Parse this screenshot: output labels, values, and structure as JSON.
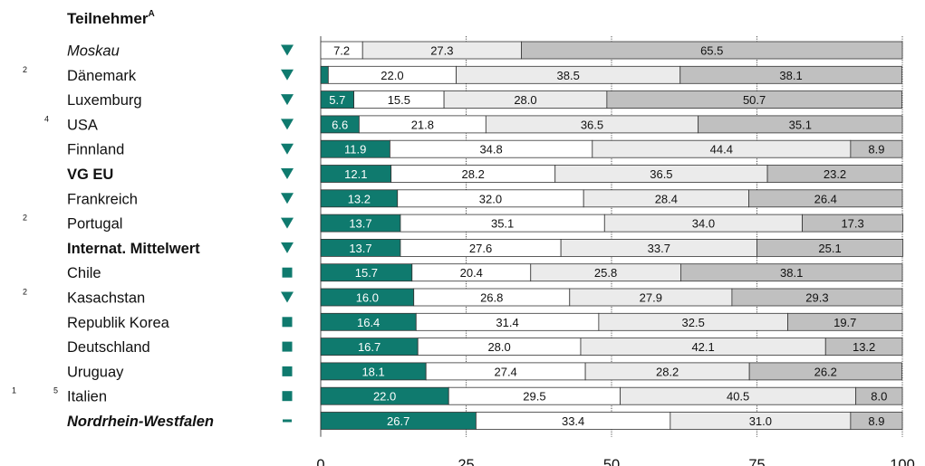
{
  "header": {
    "title": "Teilnehmer",
    "title_sup": "A"
  },
  "colors": {
    "seg1": "#0f7a6e",
    "seg2": "#ffffff",
    "seg3": "#ebebeb",
    "seg4": "#c0c0c0",
    "marker": "#0f7a6e",
    "stroke": "#333333"
  },
  "chart_data": {
    "type": "bar",
    "orientation": "horizontal",
    "stacked": true,
    "xlim": [
      0,
      100
    ],
    "xticks": [
      "0",
      "25",
      "50",
      "75",
      "100"
    ],
    "rows": [
      {
        "name": "Moskau",
        "style": "italic",
        "fn1": "",
        "fn2": "",
        "marker": "down",
        "values": [
          7.2,
          27.3,
          65.5
        ],
        "labels": [
          "7.2",
          "27.3",
          "65.5"
        ],
        "start": 1
      },
      {
        "name": "Dänemark",
        "style": "normal",
        "fn1": "2",
        "fn2": "",
        "marker": "down",
        "values": [
          1.3,
          22.0,
          38.5,
          38.1
        ],
        "labels": [
          "",
          "22.0",
          "38.5",
          "38.1"
        ],
        "start": 0
      },
      {
        "name": "Luxemburg",
        "style": "normal",
        "fn1": "",
        "fn2": "",
        "marker": "down",
        "values": [
          5.7,
          15.5,
          28.0,
          50.7
        ],
        "labels": [
          "5.7",
          "15.5",
          "28.0",
          "50.7"
        ],
        "start": 0
      },
      {
        "name": "USA",
        "style": "normal",
        "fn1": "",
        "fn2": "4",
        "marker": "down",
        "values": [
          6.6,
          21.8,
          36.5,
          35.1
        ],
        "labels": [
          "6.6",
          "21.8",
          "36.5",
          "35.1"
        ],
        "start": 0
      },
      {
        "name": "Finnland",
        "style": "normal",
        "fn1": "",
        "fn2": "",
        "marker": "down",
        "values": [
          11.9,
          34.8,
          44.4,
          8.9
        ],
        "labels": [
          "11.9",
          "34.8",
          "44.4",
          "8.9"
        ],
        "start": 0
      },
      {
        "name": "VG EU",
        "style": "bold",
        "fn1": "",
        "fn2": "",
        "marker": "down",
        "values": [
          12.1,
          28.2,
          36.5,
          23.2
        ],
        "labels": [
          "12.1",
          "28.2",
          "36.5",
          "23.2"
        ],
        "start": 0
      },
      {
        "name": "Frankreich",
        "style": "normal",
        "fn1": "",
        "fn2": "",
        "marker": "down",
        "values": [
          13.2,
          32.0,
          28.4,
          26.4
        ],
        "labels": [
          "13.2",
          "32.0",
          "28.4",
          "26.4"
        ],
        "start": 0
      },
      {
        "name": "Portugal",
        "style": "normal",
        "fn1": "2",
        "fn2": "",
        "marker": "down",
        "values": [
          13.7,
          35.1,
          34.0,
          17.3
        ],
        "labels": [
          "13.7",
          "35.1",
          "34.0",
          "17.3"
        ],
        "start": 0
      },
      {
        "name": "Internat. Mittelwert",
        "style": "bold",
        "fn1": "",
        "fn2": "",
        "marker": "down",
        "values": [
          13.7,
          27.6,
          33.7,
          25.1
        ],
        "labels": [
          "13.7",
          "27.6",
          "33.7",
          "25.1"
        ],
        "start": 0
      },
      {
        "name": "Chile",
        "style": "normal",
        "fn1": "",
        "fn2": "",
        "marker": "square",
        "values": [
          15.7,
          20.4,
          25.8,
          38.1
        ],
        "labels": [
          "15.7",
          "20.4",
          "25.8",
          "38.1"
        ],
        "start": 0
      },
      {
        "name": "Kasachstan",
        "style": "normal",
        "fn1": "2",
        "fn2": "",
        "marker": "down",
        "values": [
          16.0,
          26.8,
          27.9,
          29.3
        ],
        "labels": [
          "16.0",
          "26.8",
          "27.9",
          "29.3"
        ],
        "start": 0
      },
      {
        "name": "Republik Korea",
        "style": "normal",
        "fn1": "",
        "fn2": "",
        "marker": "square",
        "values": [
          16.4,
          31.4,
          32.5,
          19.7
        ],
        "labels": [
          "16.4",
          "31.4",
          "32.5",
          "19.7"
        ],
        "start": 0
      },
      {
        "name": "Deutschland",
        "style": "normal",
        "fn1": "",
        "fn2": "",
        "marker": "square",
        "values": [
          16.7,
          28.0,
          42.1,
          13.2
        ],
        "labels": [
          "16.7",
          "28.0",
          "42.1",
          "13.2"
        ],
        "start": 0
      },
      {
        "name": "Uruguay",
        "style": "normal",
        "fn1": "",
        "fn2": "",
        "marker": "square",
        "values": [
          18.1,
          27.4,
          28.2,
          26.2
        ],
        "labels": [
          "18.1",
          "27.4",
          "28.2",
          "26.2"
        ],
        "start": 0
      },
      {
        "name": "Italien",
        "style": "normal",
        "fn1": "1",
        "fn2": "5",
        "marker": "square",
        "values": [
          22.0,
          29.5,
          40.5,
          8.0
        ],
        "labels": [
          "22.0",
          "29.5",
          "40.5",
          "8.0"
        ],
        "start": 0
      },
      {
        "name": "Nordrhein-Westfalen",
        "style": "bolditalic",
        "fn1": "",
        "fn2": "",
        "marker": "dash",
        "values": [
          26.7,
          33.4,
          31.0,
          8.9
        ],
        "labels": [
          "26.7",
          "33.4",
          "31.0",
          "8.9"
        ],
        "start": 0
      }
    ]
  }
}
